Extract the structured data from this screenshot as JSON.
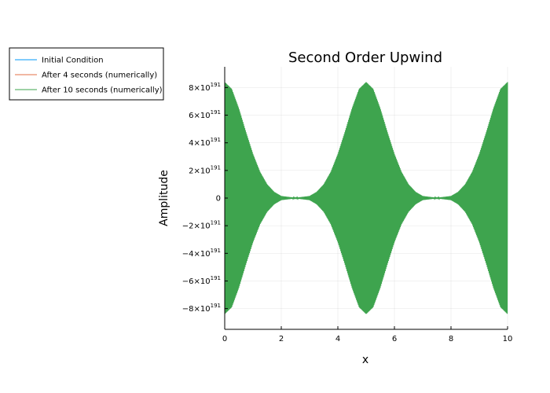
{
  "chart_data": {
    "type": "line",
    "title": "Second Order Upwind",
    "xlabel": "x",
    "ylabel": "Amplitude",
    "xlim": [
      0,
      10
    ],
    "ylim": [
      -9.5e+191,
      9.5e+191
    ],
    "x_ticks": [
      0,
      2,
      4,
      6,
      8,
      10
    ],
    "x_tick_labels": [
      "0",
      "2",
      "4",
      "6",
      "8",
      "10"
    ],
    "y_ticks": [
      {
        "value": 8e+191,
        "mantissa": "8×10",
        "exponent": "191"
      },
      {
        "value": 6e+191,
        "mantissa": "6×10",
        "exponent": "191"
      },
      {
        "value": 4e+191,
        "mantissa": "4×10",
        "exponent": "191"
      },
      {
        "value": 2e+191,
        "mantissa": "2×10",
        "exponent": "191"
      },
      {
        "value": 0,
        "mantissa": "0",
        "exponent": ""
      },
      {
        "value": -2e+191,
        "mantissa": "−2×10",
        "exponent": "191"
      },
      {
        "value": -4e+191,
        "mantissa": "−4×10",
        "exponent": "191"
      },
      {
        "value": -6e+191,
        "mantissa": "−6×10",
        "exponent": "191"
      },
      {
        "value": -8e+191,
        "mantissa": "−8×10",
        "exponent": "191"
      }
    ],
    "grid": true,
    "legend_position": "top-left (outside)",
    "series": [
      {
        "name": "Initial Condition",
        "color": "#009AFA",
        "x": [
          0,
          10
        ],
        "y": [
          0,
          0
        ]
      },
      {
        "name": "After 4 seconds (numerically)",
        "color": "#E36F47",
        "x": [
          0,
          10
        ],
        "y": [
          0,
          0
        ]
      },
      {
        "name": "After 10 seconds (numerically)",
        "color": "#3EA44E",
        "style": "high-frequency oscillation filling envelope",
        "envelope_x": [
          0,
          0.25,
          0.5,
          0.75,
          1.0,
          1.25,
          1.5,
          1.75,
          2.0,
          2.5,
          3.0,
          3.25,
          3.5,
          3.75,
          4.0,
          4.25,
          4.5,
          4.75,
          5.0,
          5.25,
          5.5,
          5.75,
          6.0,
          6.25,
          6.5,
          6.75,
          7.0,
          7.5,
          8.0,
          8.25,
          8.5,
          8.75,
          9.0,
          9.25,
          9.5,
          9.75,
          10.0
        ],
        "envelope_amplitude": [
          8.4e+191,
          7.9e+191,
          6.5e+191,
          4.8e+191,
          3.2e+191,
          1.9e+191,
          1e+191,
          4.5e+190,
          1.5e+190,
          2e+189,
          1.5e+190,
          4.5e+190,
          1e+191,
          1.9e+191,
          3.2e+191,
          4.8e+191,
          6.5e+191,
          7.9e+191,
          8.4e+191,
          7.9e+191,
          6.5e+191,
          4.8e+191,
          3.2e+191,
          1.9e+191,
          1e+191,
          4.5e+190,
          1.5e+190,
          2e+189,
          1.5e+190,
          4.5e+190,
          1e+191,
          1.9e+191,
          3.2e+191,
          4.8e+191,
          6.5e+191,
          7.9e+191,
          8.4e+191
        ]
      }
    ]
  }
}
